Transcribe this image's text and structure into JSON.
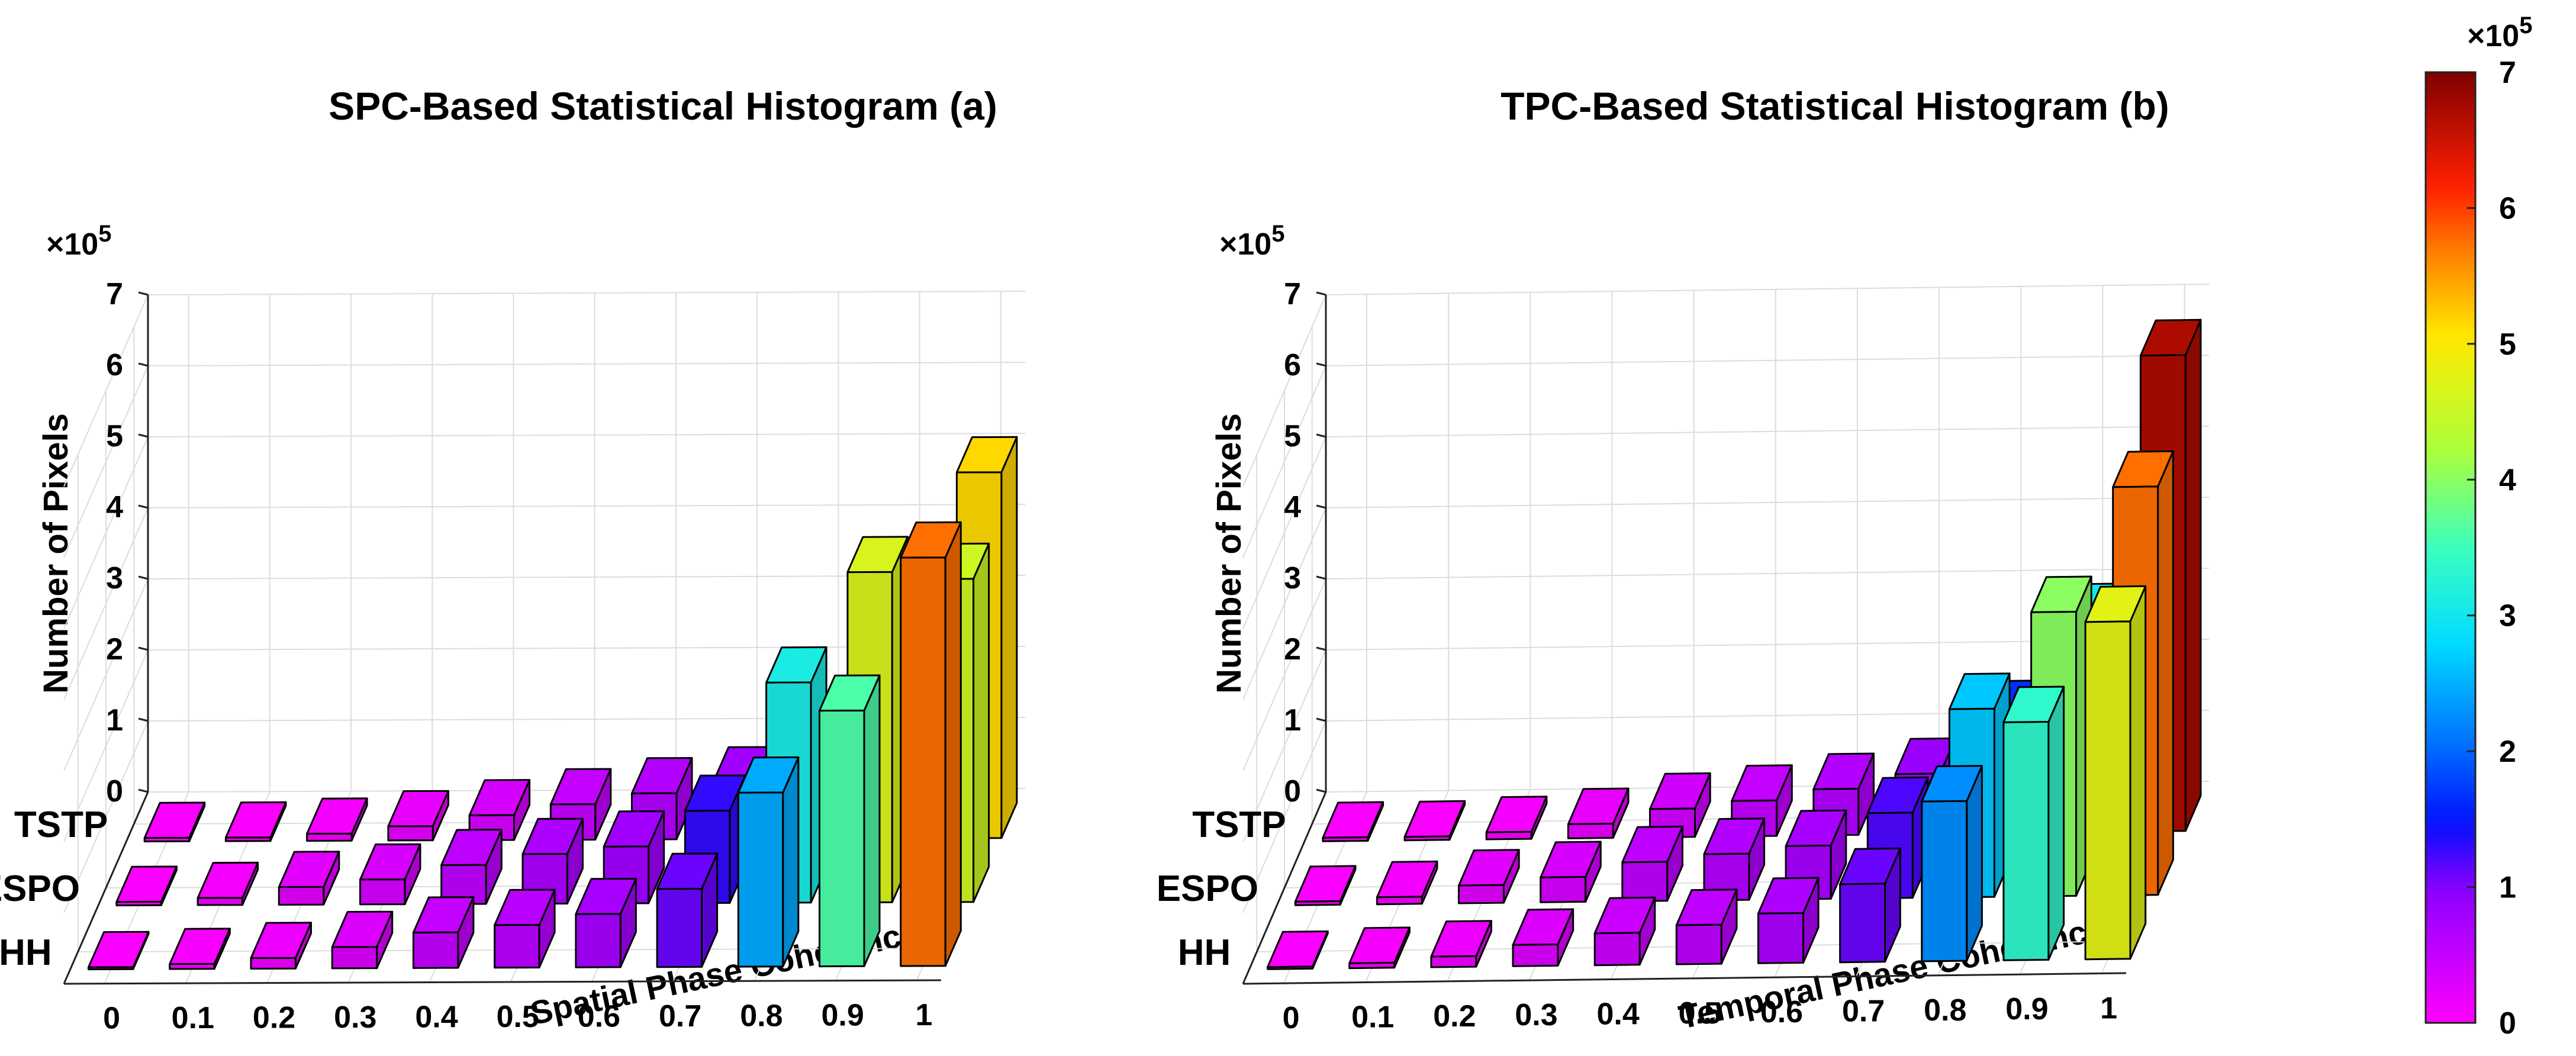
{
  "chart_data": [
    {
      "type": "bar3d",
      "title": "SPC-Based Statistical Histogram (a)",
      "xlabel": "Spatial Phase Coherence",
      "ylabel": "Number of Pixels",
      "multiplier": "×10",
      "multiplier_exp": "5",
      "categories": [
        "0",
        "0.1",
        "0.2",
        "0.3",
        "0.4",
        "0.5",
        "0.6",
        "0.7",
        "0.8",
        "0.9",
        "1"
      ],
      "zticks": [
        "0",
        "1",
        "2",
        "3",
        "4",
        "5",
        "6",
        "7"
      ],
      "zlim": [
        0,
        7
      ],
      "series": [
        {
          "name": "TSTP",
          "values": [
            0.05,
            0.05,
            0.1,
            0.2,
            0.35,
            0.5,
            0.65,
            0.8,
            1.55,
            3.0,
            5.15
          ]
        },
        {
          "name": "ESPO",
          "values": [
            0.05,
            0.1,
            0.25,
            0.35,
            0.55,
            0.7,
            0.8,
            1.3,
            3.1,
            4.65,
            4.55
          ]
        },
        {
          "name": "HH",
          "values": [
            0.03,
            0.07,
            0.15,
            0.3,
            0.5,
            0.6,
            0.75,
            1.1,
            2.45,
            3.6,
            5.75
          ]
        }
      ]
    },
    {
      "type": "bar3d",
      "title": "TPC-Based Statistical Histogram (b)",
      "xlabel": "Temporal Phase Coherence",
      "ylabel": "Number of Pixels",
      "multiplier": "×10",
      "multiplier_exp": "5",
      "categories": [
        "0",
        "0.1",
        "0.2",
        "0.3",
        "0.4",
        "0.5",
        "0.6",
        "0.7",
        "0.8",
        "0.9",
        "1"
      ],
      "zticks": [
        "0",
        "1",
        "2",
        "3",
        "4",
        "5",
        "6",
        "7"
      ],
      "zlim": [
        0,
        7
      ],
      "series": [
        {
          "name": "TSTP",
          "values": [
            0.05,
            0.05,
            0.1,
            0.2,
            0.4,
            0.5,
            0.65,
            0.85,
            1.65,
            3.0,
            6.7
          ]
        },
        {
          "name": "ESPO",
          "values": [
            0.05,
            0.1,
            0.25,
            0.35,
            0.55,
            0.65,
            0.75,
            1.2,
            2.65,
            4.0,
            5.75
          ]
        },
        {
          "name": "HH",
          "values": [
            0.03,
            0.07,
            0.15,
            0.3,
            0.45,
            0.55,
            0.7,
            1.1,
            2.25,
            3.35,
            4.75
          ]
        }
      ]
    }
  ],
  "colorbar": {
    "multiplier": "×10",
    "multiplier_exp": "5",
    "ticks": [
      "0",
      "1",
      "2",
      "3",
      "4",
      "5",
      "6",
      "7"
    ],
    "range": [
      0,
      7
    ]
  }
}
